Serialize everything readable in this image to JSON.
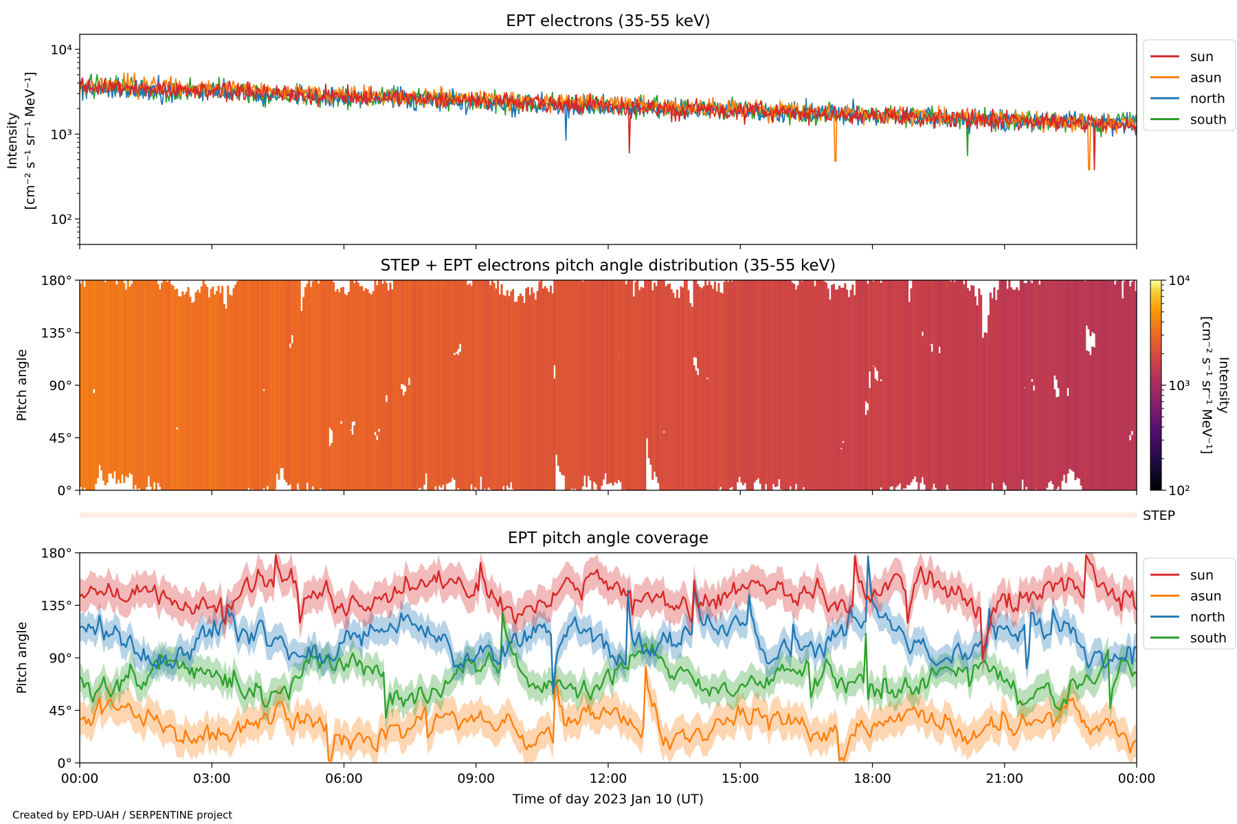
{
  "figure": {
    "footer": "Created by EPD-UAH / SERPENTINE project",
    "xlabel": "Time of day 2023 Jan 10 (UT)"
  },
  "colors": {
    "sun": "#d62728",
    "asun": "#ff7f0e",
    "north": "#1f77b4",
    "south": "#2ca02c"
  },
  "chart_data": [
    {
      "type": "line",
      "title": "EPT electrons (35-55 keV)",
      "ylabel_line1": "Intensity",
      "ylabel_line2": "[cm⁻² s⁻¹ sr⁻¹ MeV⁻¹]",
      "yscale": "log",
      "ylim": [
        50,
        15000
      ],
      "yticks": [
        "10²",
        "10³",
        "10⁴"
      ],
      "x_range": [
        "00:00",
        "24:00"
      ],
      "legend": [
        "sun",
        "asun",
        "north",
        "south"
      ],
      "legend_position": "outside right",
      "series": [
        {
          "name": "sun",
          "start": 3700,
          "end": 1250,
          "noise": 0.11,
          "dips": [
            [
              0.96,
              380
            ],
            [
              0.52,
              600
            ]
          ]
        },
        {
          "name": "asun",
          "start": 3900,
          "end": 1300,
          "noise": 0.11,
          "dips": [
            [
              0.715,
              480
            ],
            [
              0.955,
              380
            ]
          ]
        },
        {
          "name": "north",
          "start": 3500,
          "end": 1300,
          "noise": 0.12,
          "dips": [
            [
              0.46,
              850
            ]
          ]
        },
        {
          "name": "south",
          "start": 3600,
          "end": 1300,
          "noise": 0.12,
          "dips": [
            [
              0.84,
              560
            ]
          ]
        }
      ]
    },
    {
      "type": "heatmap",
      "title": "STEP + EPT electrons pitch angle distribution (35-55 keV)",
      "ylabel": "Pitch angle",
      "ylim": [
        0,
        180
      ],
      "yticks": [
        "0°",
        "45°",
        "90°",
        "135°",
        "180°"
      ],
      "colorbar": {
        "label_line1": "Intensity",
        "label_line2": "[cm⁻² s⁻¹ sr⁻¹ MeV⁻¹]",
        "scale": "log",
        "range": [
          100,
          10000
        ],
        "ticks": [
          "10²",
          "10³",
          "10⁴"
        ]
      },
      "step_label": "STEP"
    },
    {
      "type": "line",
      "title": "EPT pitch angle coverage",
      "ylabel": "Pitch angle",
      "ylim": [
        0,
        180
      ],
      "yticks": [
        "0°",
        "45°",
        "90°",
        "135°",
        "180°"
      ],
      "xticks": [
        "00:00",
        "03:00",
        "06:00",
        "09:00",
        "12:00",
        "15:00",
        "18:00",
        "21:00",
        "00:00"
      ],
      "legend": [
        "sun",
        "asun",
        "north",
        "south"
      ],
      "legend_position": "outside right",
      "series": [
        {
          "name": "sun",
          "mean": 145,
          "amplitude": 18,
          "band": 14
        },
        {
          "name": "asun",
          "mean": 32,
          "amplitude": 18,
          "band": 14
        },
        {
          "name": "north",
          "mean": 105,
          "amplitude": 28,
          "band": 12
        },
        {
          "name": "south",
          "mean": 72,
          "amplitude": 25,
          "band": 12
        }
      ]
    }
  ]
}
